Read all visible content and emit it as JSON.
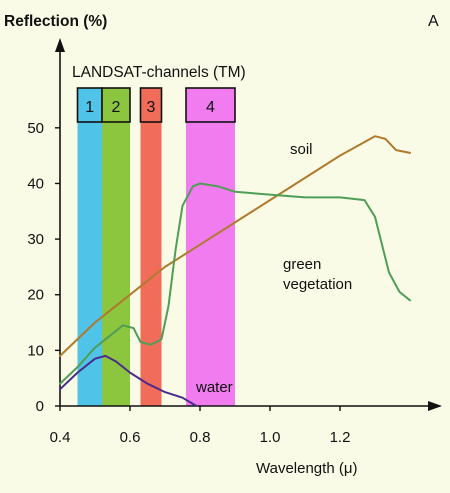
{
  "chart_data": {
    "type": "line",
    "panel_label": "A",
    "ylabel": "Reflection (%)",
    "xlabel": "Wavelength (μ)",
    "xlim": [
      0.4,
      1.4
    ],
    "ylim": [
      0,
      55
    ],
    "x_ticks": [
      0.4,
      0.6,
      0.8,
      1.0,
      1.2
    ],
    "x_tick_labels": [
      "0.4",
      "0.6",
      "0.8",
      "1.0",
      "1.2"
    ],
    "y_ticks": [
      0,
      10,
      20,
      30,
      40,
      50
    ],
    "y_tick_labels": [
      "0",
      "10",
      "20",
      "30",
      "40",
      "50"
    ],
    "bands_title": "LANDSAT-channels (TM)",
    "bands": [
      {
        "label": "1",
        "x0": 0.45,
        "x1": 0.52,
        "color": "#4fc3e8"
      },
      {
        "label": "2",
        "x0": 0.52,
        "x1": 0.6,
        "color": "#8cc63f"
      },
      {
        "label": "3",
        "x0": 0.63,
        "x1": 0.69,
        "color": "#f26c5a"
      },
      {
        "label": "4",
        "x0": 0.76,
        "x1": 0.9,
        "color": "#f07cf0"
      }
    ],
    "series": [
      {
        "name": "soil",
        "color": "#b07a2e",
        "x": [
          0.4,
          0.5,
          0.6,
          0.7,
          0.8,
          0.9,
          1.0,
          1.1,
          1.2,
          1.3,
          1.33,
          1.36,
          1.4
        ],
        "y": [
          9,
          15,
          20,
          25,
          29,
          33,
          37,
          41,
          45,
          48.5,
          48,
          46,
          45.5
        ]
      },
      {
        "name": "green vegetation",
        "color": "#4f9e57",
        "x": [
          0.4,
          0.45,
          0.5,
          0.55,
          0.58,
          0.61,
          0.63,
          0.66,
          0.69,
          0.71,
          0.73,
          0.75,
          0.78,
          0.8,
          0.85,
          0.9,
          1.0,
          1.1,
          1.2,
          1.27,
          1.3,
          1.32,
          1.34,
          1.37,
          1.4
        ],
        "y": [
          4,
          7,
          10.5,
          13,
          14.5,
          14,
          11.5,
          11,
          12,
          18,
          28,
          36,
          39.5,
          40,
          39.5,
          38.5,
          38,
          37.5,
          37.5,
          37,
          34,
          29,
          24,
          20.5,
          19
        ]
      },
      {
        "name": "water",
        "color": "#4a2c8c",
        "x": [
          0.4,
          0.45,
          0.5,
          0.53,
          0.56,
          0.6,
          0.65,
          0.7,
          0.75,
          0.79
        ],
        "y": [
          3,
          6,
          8.5,
          9,
          8,
          6,
          4,
          2.5,
          1.5,
          0
        ]
      }
    ]
  }
}
